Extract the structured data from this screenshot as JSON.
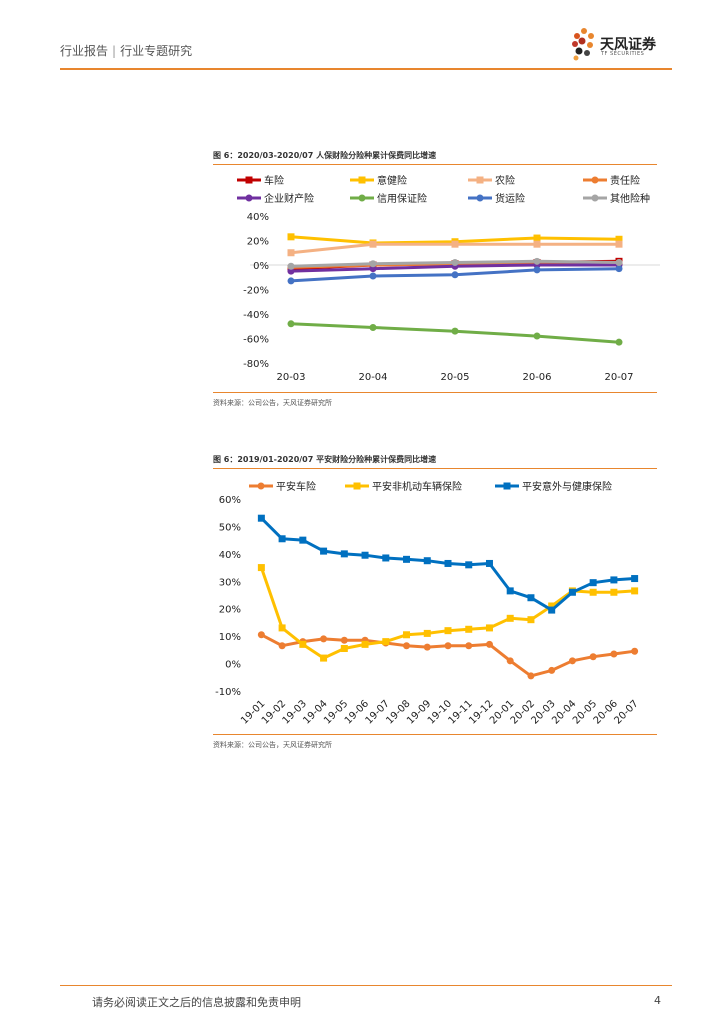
{
  "header": {
    "category": "行业报告",
    "separator": "|",
    "subcategory": "行业专题研究",
    "logo_name": "天风证券",
    "logo_sub": "TF SECURITIES",
    "accent_color": "#e8862e"
  },
  "figures": [
    {
      "title": "图 6：2020/03-2020/07 人保财险分险种累计保费同比增速",
      "source": "资料来源：公司公告，天风证券研究所"
    },
    {
      "title": "图 6：2019/01-2020/07 平安财险分险种累计保费同比增速",
      "source": "资料来源：公司公告，天风证券研究所"
    }
  ],
  "chart_data": [
    {
      "type": "line",
      "title": "2020/03-2020/07 人保财险分险种累计保费同比增速",
      "categories": [
        "20-03",
        "20-04",
        "20-05",
        "20-06",
        "20-07"
      ],
      "ylim": [
        -80,
        40
      ],
      "yticks": [
        40,
        20,
        0,
        -20,
        -40,
        -60,
        -80
      ],
      "ytick_labels": [
        "40%",
        "20%",
        "0%",
        "-20%",
        "-40%",
        "-60%",
        "-80%"
      ],
      "grid": "zero-line",
      "legend": "top",
      "series": [
        {
          "name": "车险",
          "color": "#c00000",
          "marker": "square",
          "values": [
            -3,
            0,
            1,
            2,
            3
          ]
        },
        {
          "name": "意健险",
          "color": "#ffc000",
          "marker": "square",
          "values": [
            23,
            18,
            19,
            22,
            21
          ]
        },
        {
          "name": "农险",
          "color": "#f4b183",
          "marker": "square",
          "values": [
            10,
            17,
            17,
            17,
            17
          ]
        },
        {
          "name": "责任险",
          "color": "#ed7d31",
          "marker": "dot",
          "values": [
            -2,
            0,
            1,
            2,
            2
          ]
        },
        {
          "name": "企业财产险",
          "color": "#7030a0",
          "marker": "dot",
          "values": [
            -5,
            -3,
            -1,
            0,
            0
          ]
        },
        {
          "name": "信用保证险",
          "color": "#70ad47",
          "marker": "dot",
          "values": [
            -48,
            -51,
            -54,
            -58,
            -63
          ]
        },
        {
          "name": "货运险",
          "color": "#4472c4",
          "marker": "dot",
          "values": [
            -13,
            -9,
            -8,
            -4,
            -3
          ]
        },
        {
          "name": "其他险种",
          "color": "#a5a5a5",
          "marker": "dot",
          "values": [
            -1,
            1,
            2,
            3,
            2
          ]
        }
      ]
    },
    {
      "type": "line",
      "title": "2019/01-2020/07 平安财险分险种累计保费同比增速",
      "categories": [
        "19-01",
        "19-02",
        "19-03",
        "19-04",
        "19-05",
        "19-06",
        "19-07",
        "19-08",
        "19-09",
        "19-10",
        "19-11",
        "19-12",
        "20-01",
        "20-02",
        "20-03",
        "20-04",
        "20-05",
        "20-06",
        "20-07"
      ],
      "ylim": [
        -10,
        60
      ],
      "yticks": [
        60,
        50,
        40,
        30,
        20,
        10,
        0,
        -10
      ],
      "ytick_labels": [
        "60%",
        "50%",
        "40%",
        "30%",
        "20%",
        "10%",
        "0%",
        "-10%"
      ],
      "grid": "none",
      "legend": "top",
      "series": [
        {
          "name": "平安车险",
          "color": "#ed7d31",
          "marker": "dot",
          "values": [
            10.5,
            6.5,
            8.0,
            9.0,
            8.5,
            8.5,
            7.5,
            6.5,
            6.0,
            6.5,
            6.5,
            7.0,
            1.0,
            -4.5,
            -2.5,
            1.0,
            2.5,
            3.5,
            4.5
          ]
        },
        {
          "name": "平安非机动车辆保险",
          "color": "#ffc000",
          "marker": "square",
          "values": [
            35.0,
            13.0,
            7.0,
            2.0,
            5.5,
            7.0,
            8.0,
            10.5,
            11.0,
            12.0,
            12.5,
            13.0,
            16.5,
            16.0,
            21.0,
            26.5,
            26.0,
            26.0,
            26.5
          ]
        },
        {
          "name": "平安意外与健康保险",
          "color": "#0070c0",
          "marker": "square",
          "values": [
            53.0,
            45.5,
            45.0,
            41.0,
            40.0,
            39.5,
            38.5,
            38.0,
            37.5,
            36.5,
            36.0,
            36.5,
            26.5,
            24.0,
            19.5,
            26.0,
            29.5,
            30.5,
            31.0
          ]
        }
      ]
    }
  ],
  "footer": {
    "disclaimer": "请务必阅读正文之后的信息披露和免责申明",
    "page_number": "4"
  }
}
